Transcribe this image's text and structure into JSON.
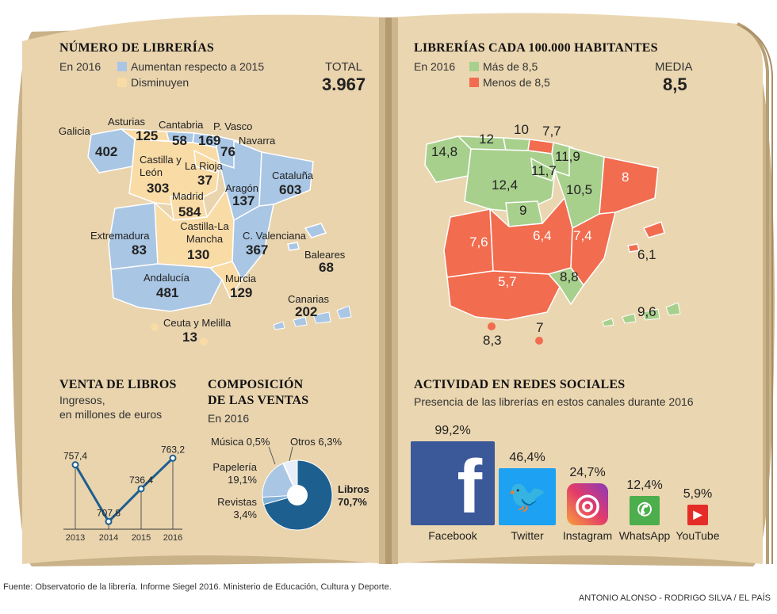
{
  "colors": {
    "blue": "#a9c6e4",
    "yellow": "#f9dba6",
    "green": "#a8d08d",
    "red": "#f26c4f",
    "navy": "#1d5f8f",
    "paper": "#e7d2ac"
  },
  "libraries": {
    "title": "NÚMERO DE LIBRERÍAS",
    "year": "En 2016",
    "legend_up": "Aumentan respecto a 2015",
    "legend_down": "Disminuyen",
    "total_label": "TOTAL",
    "total_value": "3.967",
    "regions": [
      {
        "name": "Galicia",
        "value": "402",
        "trend": "up"
      },
      {
        "name": "Asturias",
        "value": "125",
        "trend": "down"
      },
      {
        "name": "Cantabria",
        "value": "58",
        "trend": "up"
      },
      {
        "name": "P. Vasco",
        "value": "169",
        "trend": "up"
      },
      {
        "name": "Navarra",
        "value": "76",
        "trend": "up"
      },
      {
        "name": "Castilla y León",
        "value": "303",
        "trend": "down"
      },
      {
        "name": "La Rioja",
        "value": "37",
        "trend": "down"
      },
      {
        "name": "Aragón",
        "value": "137",
        "trend": "up"
      },
      {
        "name": "Cataluña",
        "value": "603",
        "trend": "up"
      },
      {
        "name": "Madrid",
        "value": "584",
        "trend": "down"
      },
      {
        "name": "Extremadura",
        "value": "83",
        "trend": "up"
      },
      {
        "name": "Castilla-La Mancha",
        "value": "130",
        "trend": "down"
      },
      {
        "name": "C. Valenciana",
        "value": "367",
        "trend": "up"
      },
      {
        "name": "Baleares",
        "value": "68",
        "trend": "up"
      },
      {
        "name": "Andalucía",
        "value": "481",
        "trend": "up"
      },
      {
        "name": "Murcia",
        "value": "129",
        "trend": "down"
      },
      {
        "name": "Canarias",
        "value": "202",
        "trend": "up"
      },
      {
        "name": "Ceuta y Melilla",
        "value": "13",
        "trend": "down"
      }
    ]
  },
  "per_capita": {
    "title": "LIBRERÍAS CADA 100.000 HABITANTES",
    "year": "En 2016",
    "legend_high": "Más de 8,5",
    "legend_low": "Menos de 8,5",
    "mean_label": "MEDIA",
    "mean_value": "8,5",
    "values": [
      "14,8",
      "12",
      "10",
      "7,7",
      "11,9",
      "11,7",
      "12,4",
      "10,5",
      "8",
      "9",
      "6,4",
      "7,6",
      "7,4",
      "6,1",
      "8,8",
      "5,7",
      "9,6",
      "8,3",
      "7"
    ]
  },
  "sales": {
    "title": "VENTA DE LIBROS",
    "subtitle": [
      "Ingresos,",
      "en millones de euros"
    ],
    "value_labels": [
      "757,4",
      "707,8",
      "736,4",
      "763,2"
    ]
  },
  "composition": {
    "title": [
      "COMPOSICIÓN",
      "DE LAS VENTAS"
    ],
    "year": "En 2016",
    "labels": {
      "musica": "Música 0,5%",
      "otros": "Otros 6,3%",
      "papeleria": [
        "Papelería",
        "19,1%"
      ],
      "revistas": [
        "Revistas",
        "3,4%"
      ],
      "libros": [
        "Libros",
        "70,7%"
      ]
    }
  },
  "social": {
    "title": "ACTIVIDAD EN REDES SOCIALES",
    "subtitle": "Presencia de las librerías en estos canales durante 2016",
    "networks": [
      {
        "name": "Facebook",
        "pct": "99,2%",
        "value": 99.2,
        "icon": "facebook-icon",
        "color": "#3b5998"
      },
      {
        "name": "Twitter",
        "pct": "46,4%",
        "value": 46.4,
        "icon": "twitter-icon",
        "color": "#1da1f2"
      },
      {
        "name": "Instagram",
        "pct": "24,7%",
        "value": 24.7,
        "icon": "instagram-icon",
        "color": "#c13584"
      },
      {
        "name": "WhatsApp",
        "pct": "12,4%",
        "value": 12.4,
        "icon": "whatsapp-icon",
        "color": "#4cae4c"
      },
      {
        "name": "YouTube",
        "pct": "5,9%",
        "value": 5.9,
        "icon": "youtube-icon",
        "color": "#e52d27"
      }
    ]
  },
  "chart_data": [
    {
      "type": "line",
      "title": "VENTA DE LIBROS",
      "ylabel": "Ingresos, en millones de euros",
      "x": [
        "2013",
        "2014",
        "2015",
        "2016"
      ],
      "values": [
        757.4,
        707.8,
        736.4,
        763.2
      ]
    },
    {
      "type": "pie",
      "title": "COMPOSICIÓN DE LAS VENTAS",
      "categories": [
        "Libros",
        "Revistas",
        "Papelería",
        "Música",
        "Otros"
      ],
      "values": [
        70.7,
        3.4,
        19.1,
        0.5,
        6.3
      ]
    },
    {
      "type": "bar",
      "title": "ACTIVIDAD EN REDES SOCIALES",
      "categories": [
        "Facebook",
        "Twitter",
        "Instagram",
        "WhatsApp",
        "YouTube"
      ],
      "values": [
        99.2,
        46.4,
        24.7,
        12.4,
        5.9
      ]
    }
  ],
  "footer": {
    "source": "Fuente: Observatorio de la librería. Informe Siegel 2016. Ministerio de Educación, Cultura y Deporte.",
    "credit": "ANTONIO ALONSO - RODRIGO SILVA / EL PAÍS"
  }
}
